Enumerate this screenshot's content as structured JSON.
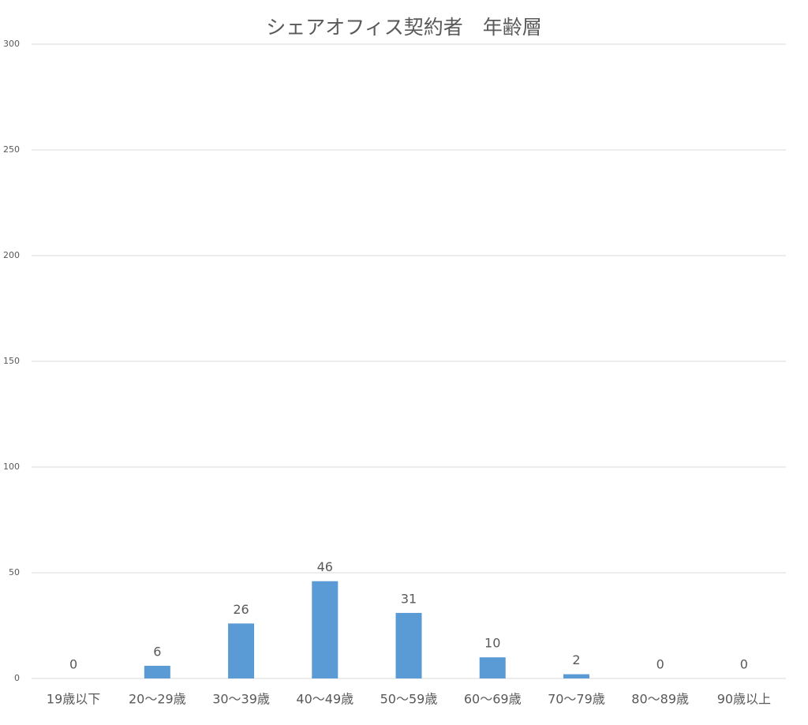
{
  "chart_data": {
    "type": "bar",
    "title": "シェアオフィス契約者　年齢層",
    "categories": [
      "19歳以下",
      "20～29歳",
      "30～39歳",
      "40～49歳",
      "50～59歳",
      "60～69歳",
      "70～79歳",
      "80～89歳",
      "90歳以上"
    ],
    "values": [
      0,
      6,
      26,
      46,
      31,
      10,
      2,
      0,
      0
    ],
    "color": "#5b9bd5",
    "ylim": [
      0,
      300
    ],
    "yticks": [
      0,
      50,
      100,
      150,
      200,
      250,
      300
    ],
    "grid": true
  }
}
